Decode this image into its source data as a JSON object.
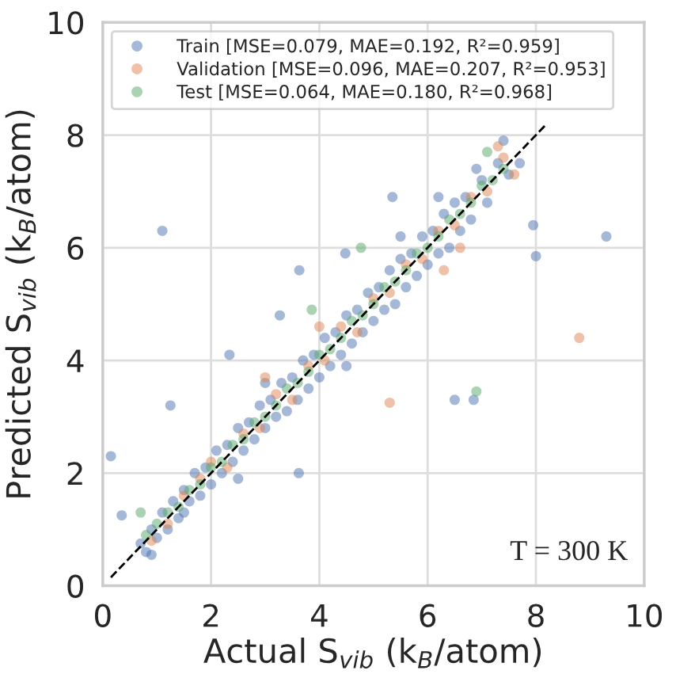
{
  "chart_data": {
    "type": "scatter",
    "xlabel": "Actual S$_{vib}$ (k$_{B}$/atom)",
    "ylabel": "Predicted S$_{vib}$ (k$_{B}$/atom)",
    "xlim": [
      0,
      10
    ],
    "ylim": [
      0,
      10
    ],
    "xticks": [
      0,
      2,
      4,
      6,
      8,
      10
    ],
    "yticks": [
      0,
      2,
      4,
      6,
      8,
      10
    ],
    "grid": true,
    "legend": "top left",
    "marker": "circle",
    "annotations": [
      "T = 300 K"
    ],
    "series": [
      {
        "name": "Train [MSE=0.079, MAE=0.192, R²=0.959]",
        "color": "#4c72b0",
        "x": [
          0.7,
          0.8,
          0.9,
          1.0,
          1.1,
          1.2,
          1.3,
          1.4,
          1.5,
          1.5,
          1.6,
          1.7,
          1.8,
          1.9,
          2.0,
          2.1,
          2.2,
          2.3,
          2.4,
          2.5,
          2.6,
          2.7,
          2.8,
          2.9,
          3.0,
          3.1,
          3.2,
          3.3,
          3.4,
          3.5,
          3.6,
          3.7,
          3.8,
          3.9,
          4.0,
          4.1,
          4.2,
          4.3,
          4.4,
          4.5,
          4.6,
          4.7,
          4.8,
          4.9,
          5.0,
          5.1,
          5.2,
          5.3,
          5.4,
          5.5,
          5.6,
          5.7,
          5.8,
          5.9,
          6.0,
          6.1,
          6.2,
          6.3,
          6.4,
          6.5,
          6.6,
          6.7,
          6.8,
          7.0,
          7.1,
          7.3,
          7.5,
          7.7,
          7.4,
          6.9,
          2.5,
          3.0,
          4.5,
          5.5,
          6.2,
          1.1,
          9.3,
          7.95,
          8.0,
          5.35,
          6.5,
          6.85,
          1.25,
          3.63,
          4.48,
          3.27,
          2.34,
          0.15,
          3.62,
          0.35,
          0.9
        ],
        "values": [
          0.75,
          0.6,
          1.0,
          0.85,
          1.3,
          1.0,
          1.5,
          1.2,
          1.7,
          1.3,
          1.5,
          2.0,
          1.6,
          2.1,
          1.8,
          2.4,
          2.0,
          2.5,
          2.2,
          2.8,
          2.4,
          2.9,
          2.6,
          3.2,
          2.8,
          3.3,
          3.0,
          3.6,
          3.1,
          3.7,
          3.3,
          4.0,
          3.5,
          4.1,
          3.7,
          4.4,
          3.9,
          4.5,
          4.1,
          4.8,
          4.3,
          4.9,
          4.5,
          5.2,
          4.7,
          5.3,
          4.9,
          5.6,
          5.0,
          5.8,
          5.3,
          5.9,
          5.5,
          6.2,
          5.7,
          6.3,
          5.9,
          6.6,
          6.0,
          6.8,
          6.3,
          6.9,
          6.5,
          7.2,
          6.8,
          7.5,
          7.3,
          7.5,
          7.9,
          7.4,
          1.9,
          3.6,
          3.9,
          6.2,
          6.9,
          6.3,
          6.2,
          6.4,
          5.85,
          6.9,
          3.3,
          3.3,
          3.2,
          5.6,
          5.9,
          4.8,
          4.1,
          2.3,
          2.0,
          1.25,
          0.55
        ]
      },
      {
        "name": "Validation [MSE=0.096, MAE=0.207, R²=0.953]",
        "color": "#dd8452",
        "x": [
          0.9,
          1.2,
          1.5,
          1.8,
          2.0,
          2.3,
          2.6,
          2.9,
          3.2,
          3.5,
          3.8,
          4.1,
          4.4,
          4.7,
          5.0,
          5.3,
          5.6,
          5.9,
          6.2,
          6.5,
          6.8,
          7.1,
          7.4,
          7.6,
          4.0,
          6.3,
          5.3,
          8.8,
          3.0,
          6.6,
          7.3
        ],
        "values": [
          0.8,
          1.1,
          1.6,
          1.9,
          2.2,
          2.1,
          2.7,
          2.8,
          3.4,
          3.3,
          3.9,
          4.0,
          4.6,
          4.5,
          5.1,
          5.2,
          5.7,
          5.8,
          6.3,
          6.4,
          6.9,
          7.0,
          7.6,
          7.3,
          4.6,
          5.6,
          3.25,
          4.4,
          3.7,
          6.0,
          7.8
        ]
      },
      {
        "name": "Test [MSE=0.064, MAE=0.180, R²=0.968]",
        "color": "#55a868",
        "x": [
          0.8,
          1.0,
          1.2,
          1.4,
          1.6,
          1.8,
          2.0,
          2.2,
          2.4,
          2.6,
          2.8,
          3.0,
          3.2,
          3.4,
          3.6,
          3.8,
          4.0,
          4.2,
          4.4,
          4.6,
          4.8,
          5.0,
          5.2,
          5.4,
          5.6,
          5.8,
          6.0,
          6.2,
          6.4,
          6.6,
          6.8,
          7.0,
          7.2,
          7.4,
          6.9,
          4.77,
          3.86,
          7.1,
          0.7
        ],
        "values": [
          0.9,
          1.1,
          1.3,
          1.4,
          1.7,
          1.8,
          2.1,
          2.2,
          2.5,
          2.6,
          2.9,
          3.0,
          3.2,
          3.5,
          3.6,
          3.8,
          4.1,
          4.2,
          4.4,
          4.7,
          4.8,
          5.0,
          5.3,
          5.4,
          5.6,
          5.9,
          6.0,
          6.2,
          6.5,
          6.6,
          6.8,
          7.1,
          7.2,
          7.4,
          3.45,
          6.0,
          4.9,
          7.7,
          1.3
        ]
      },
      {
        "type": "line",
        "color": "#000000",
        "line_style": "dashed",
        "marker": "none",
        "x": [
          0.15,
          8.2
        ],
        "values": [
          0.15,
          8.2
        ]
      }
    ]
  }
}
